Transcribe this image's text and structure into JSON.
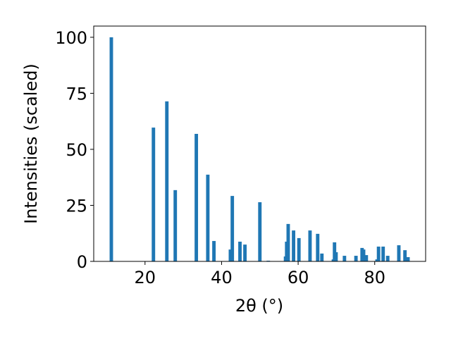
{
  "chart_data": {
    "type": "bar",
    "xlabel": "2θ (°)",
    "ylabel": "Intensities (scaled)",
    "x": [
      11.2,
      22.2,
      25.7,
      27.9,
      33.4,
      36.4,
      38.0,
      42.3,
      42.8,
      44.8,
      46.1,
      50.0,
      52.2,
      56.7,
      57.0,
      57.4,
      58.8,
      60.2,
      63.1,
      65.1,
      66.2,
      69.2,
      69.5,
      69.9,
      72.1,
      75.1,
      76.7,
      77.1,
      77.8,
      80.6,
      81.0,
      82.2,
      83.4,
      86.3,
      87.9,
      88.7
    ],
    "values": [
      100,
      59.7,
      71.4,
      31.8,
      56.9,
      38.7,
      9.1,
      5.3,
      29.2,
      8.8,
      7.5,
      26.4,
      0.3,
      2.2,
      8.8,
      16.7,
      13.8,
      10.4,
      13.8,
      12.3,
      3.5,
      0.9,
      8.5,
      4.1,
      2.5,
      2.5,
      6.0,
      5.3,
      2.8,
      0.9,
      6.6,
      6.6,
      2.5,
      7.2,
      5.0,
      1.9
    ],
    "bar_width": 0.9,
    "color": "#1f77b4",
    "xlim": [
      6.6,
      93.3
    ],
    "xticks": [
      20,
      40,
      60,
      80
    ],
    "ylim": [
      0,
      105
    ],
    "yticks": [
      0,
      25,
      50,
      75,
      100
    ]
  }
}
